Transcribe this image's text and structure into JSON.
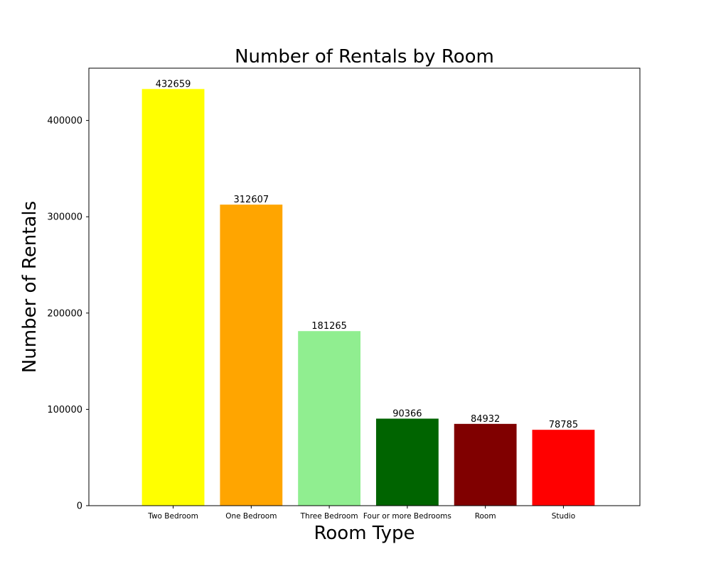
{
  "chart_data": {
    "type": "bar",
    "title": "Number of Rentals by Room",
    "xlabel": "Room Type",
    "ylabel": "Number of Rentals",
    "categories": [
      "Two Bedroom",
      "One Bedroom",
      "Three Bedroom",
      "Four or more Bedrooms",
      "Room",
      "Studio"
    ],
    "values": [
      432659,
      312607,
      181265,
      90366,
      84932,
      78785
    ],
    "colors": [
      "#ffff00",
      "#ffa500",
      "#90ee90",
      "#006400",
      "#800000",
      "#ff0000"
    ],
    "ylim": [
      0,
      454292
    ],
    "yticks": [
      0,
      100000,
      200000,
      300000,
      400000
    ],
    "grid": false,
    "legend": "none",
    "data_labels": true
  }
}
